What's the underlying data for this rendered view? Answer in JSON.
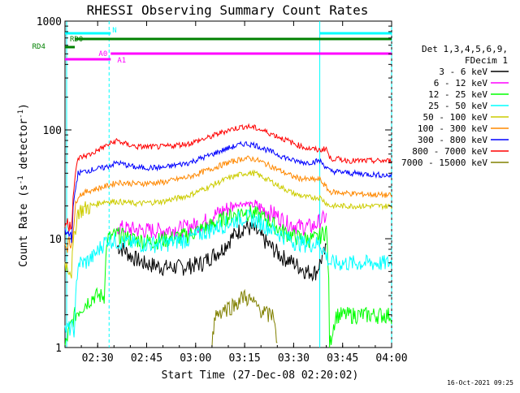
{
  "chart_data": {
    "type": "line",
    "title": "RHESSI Observing Summary Count Rates",
    "xlabel": "Start Time (27-Dec-08 02:20:02)",
    "ylabel": "Count Rate (s⁻¹ detector⁻¹)",
    "ylabel_main": "Count Rate (s",
    "ylabel_sup1": "-1",
    "ylabel_mid": " detector",
    "ylabel_sup2": "-1",
    "ylabel_end": ")",
    "yscale": "log",
    "ylim": [
      1,
      1000
    ],
    "xlim_minutes": [
      0,
      100
    ],
    "x_ticks": [
      {
        "label": "02:30",
        "minutes": 10
      },
      {
        "label": "02:45",
        "minutes": 25
      },
      {
        "label": "03:00",
        "minutes": 40
      },
      {
        "label": "03:15",
        "minutes": 55
      },
      {
        "label": "03:30",
        "minutes": 70
      },
      {
        "label": "03:45",
        "minutes": 85
      },
      {
        "label": "04:00",
        "minutes": 100
      }
    ],
    "y_ticks": [
      {
        "label": "1",
        "value": 1
      },
      {
        "label": "10",
        "value": 10
      },
      {
        "label": "100",
        "value": 100
      },
      {
        "label": "1000",
        "value": 1000
      }
    ],
    "legend_header": [
      "Det 1,3,4,5,6,9,",
      "FDecim 1"
    ],
    "series": [
      {
        "name": "3 - 6 keV",
        "color": "#000000",
        "points": [
          [
            16,
            8.5
          ],
          [
            18,
            8
          ],
          [
            20,
            7
          ],
          [
            24,
            6
          ],
          [
            30,
            5.5
          ],
          [
            36,
            5.5
          ],
          [
            42,
            6
          ],
          [
            48,
            8
          ],
          [
            52,
            11
          ],
          [
            55,
            13
          ],
          [
            58,
            12
          ],
          [
            62,
            9
          ],
          [
            66,
            7
          ],
          [
            70,
            6
          ],
          [
            74,
            5
          ],
          [
            77,
            5
          ],
          [
            80,
            8
          ]
        ]
      },
      {
        "name": "6 - 12 keV",
        "color": "#ff00ff",
        "points": [
          [
            16,
            13
          ],
          [
            18,
            12.5
          ],
          [
            24,
            12
          ],
          [
            30,
            12
          ],
          [
            36,
            12.5
          ],
          [
            42,
            14
          ],
          [
            48,
            18
          ],
          [
            53,
            21
          ],
          [
            56,
            21
          ],
          [
            60,
            19
          ],
          [
            64,
            17
          ],
          [
            68,
            14
          ],
          [
            72,
            13
          ],
          [
            76,
            13
          ],
          [
            80,
            16
          ]
        ]
      },
      {
        "name": "12 - 25 keV",
        "color": "#00ff00",
        "points": [
          [
            0,
            1
          ],
          [
            3,
            2
          ],
          [
            6,
            2.5
          ],
          [
            9,
            3
          ],
          [
            12,
            3
          ],
          [
            13,
            10
          ],
          [
            16,
            11
          ],
          [
            20,
            10
          ],
          [
            26,
            9.5
          ],
          [
            32,
            10
          ],
          [
            38,
            11
          ],
          [
            44,
            13
          ],
          [
            50,
            16
          ],
          [
            55,
            18
          ],
          [
            58,
            17
          ],
          [
            62,
            15
          ],
          [
            66,
            12
          ],
          [
            70,
            10.5
          ],
          [
            74,
            10
          ],
          [
            77,
            10
          ],
          [
            80,
            12
          ],
          [
            81,
            1
          ],
          [
            83,
            2
          ],
          [
            90,
            2
          ],
          [
            100,
            2
          ]
        ]
      },
      {
        "name": "25 - 50 keV",
        "color": "#00ffff",
        "points": [
          [
            0,
            1.5
          ],
          [
            3,
            1.5
          ],
          [
            4,
            6
          ],
          [
            6,
            6
          ],
          [
            9,
            7
          ],
          [
            13,
            10
          ],
          [
            16,
            9.5
          ],
          [
            22,
            9
          ],
          [
            30,
            9
          ],
          [
            38,
            10
          ],
          [
            44,
            12
          ],
          [
            50,
            14
          ],
          [
            55,
            16
          ],
          [
            58,
            15
          ],
          [
            62,
            13
          ],
          [
            66,
            11
          ],
          [
            70,
            9.5
          ],
          [
            74,
            9
          ],
          [
            78,
            9
          ],
          [
            81,
            6
          ],
          [
            88,
            6
          ],
          [
            100,
            6
          ]
        ]
      },
      {
        "name": "50 - 100 keV",
        "color": "#cccc00",
        "points": [
          [
            0,
            6
          ],
          [
            2,
            5
          ],
          [
            4,
            18
          ],
          [
            8,
            20
          ],
          [
            12,
            22
          ],
          [
            16,
            22
          ],
          [
            22,
            21
          ],
          [
            30,
            22
          ],
          [
            38,
            25
          ],
          [
            44,
            30
          ],
          [
            50,
            36
          ],
          [
            55,
            40
          ],
          [
            58,
            40
          ],
          [
            62,
            35
          ],
          [
            66,
            30
          ],
          [
            70,
            26
          ],
          [
            74,
            24
          ],
          [
            78,
            24
          ],
          [
            81,
            20
          ],
          [
            88,
            20
          ],
          [
            100,
            20
          ]
        ]
      },
      {
        "name": "100 - 300 keV",
        "color": "#ff8800",
        "points": [
          [
            0,
            9
          ],
          [
            2,
            9
          ],
          [
            4,
            25
          ],
          [
            8,
            28
          ],
          [
            12,
            30
          ],
          [
            16,
            33
          ],
          [
            22,
            32
          ],
          [
            30,
            33
          ],
          [
            38,
            37
          ],
          [
            44,
            43
          ],
          [
            50,
            50
          ],
          [
            55,
            55
          ],
          [
            58,
            54
          ],
          [
            62,
            48
          ],
          [
            66,
            42
          ],
          [
            70,
            37
          ],
          [
            74,
            35
          ],
          [
            78,
            35
          ],
          [
            81,
            27
          ],
          [
            88,
            26
          ],
          [
            100,
            25
          ]
        ]
      },
      {
        "name": "300 - 800 keV",
        "color": "#0000ff",
        "points": [
          [
            0,
            11
          ],
          [
            2,
            11
          ],
          [
            4,
            40
          ],
          [
            8,
            43
          ],
          [
            12,
            45
          ],
          [
            16,
            50
          ],
          [
            22,
            45
          ],
          [
            30,
            45
          ],
          [
            38,
            50
          ],
          [
            44,
            58
          ],
          [
            50,
            68
          ],
          [
            55,
            75
          ],
          [
            58,
            73
          ],
          [
            62,
            65
          ],
          [
            66,
            58
          ],
          [
            70,
            52
          ],
          [
            74,
            50
          ],
          [
            78,
            52
          ],
          [
            81,
            42
          ],
          [
            88,
            40
          ],
          [
            100,
            38
          ]
        ]
      },
      {
        "name": "800 - 7000 keV",
        "color": "#ff0000",
        "points": [
          [
            0,
            14
          ],
          [
            2,
            14
          ],
          [
            4,
            55
          ],
          [
            8,
            60
          ],
          [
            12,
            70
          ],
          [
            16,
            80
          ],
          [
            18,
            75
          ],
          [
            22,
            70
          ],
          [
            30,
            70
          ],
          [
            38,
            75
          ],
          [
            44,
            85
          ],
          [
            50,
            100
          ],
          [
            55,
            108
          ],
          [
            58,
            105
          ],
          [
            62,
            95
          ],
          [
            66,
            85
          ],
          [
            70,
            75
          ],
          [
            74,
            68
          ],
          [
            78,
            65
          ],
          [
            80,
            68
          ],
          [
            81,
            55
          ],
          [
            88,
            52
          ],
          [
            100,
            52
          ]
        ]
      },
      {
        "name": "7000 - 15000 keV",
        "color": "#808000",
        "points": [
          [
            45,
            1
          ],
          [
            46,
            2
          ],
          [
            48,
            2.2
          ],
          [
            52,
            2.5
          ],
          [
            55,
            3
          ],
          [
            58,
            2.5
          ],
          [
            62,
            2
          ],
          [
            64,
            2
          ],
          [
            65,
            1
          ]
        ]
      }
    ],
    "attenuator_bars": [
      {
        "label": "N",
        "color": "#00ffff"
      },
      {
        "label": "RD4",
        "color": "#008000"
      },
      {
        "label": "RD0",
        "color": "#008000"
      },
      {
        "label": "A0",
        "color": "#ff00ff"
      },
      {
        "label": "A1",
        "color": "#ff00ff"
      }
    ],
    "footer_date": "16-Oct-2021 09:25"
  }
}
